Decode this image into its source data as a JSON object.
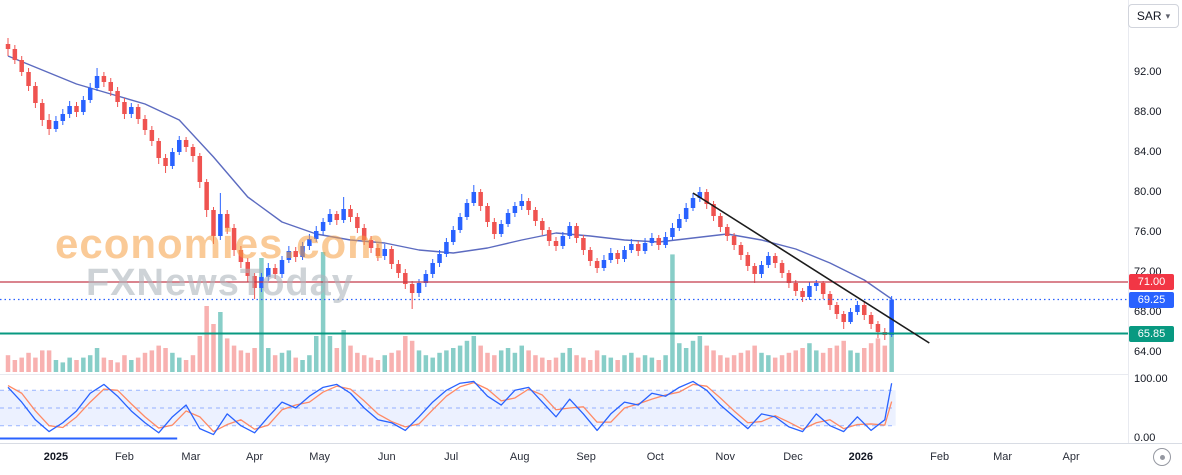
{
  "currency_selector": {
    "label": "SAR"
  },
  "icons": {
    "chevron_down": "▾",
    "target": "circle-dot"
  },
  "watermark": {
    "line1": "economies.com",
    "line2": "FXNewsToday"
  },
  "chart_data": {
    "type": "candlestick",
    "instrument_currency": "SAR",
    "y_axis": {
      "ticks": [
        92,
        88,
        84,
        80,
        76,
        72,
        68,
        64
      ]
    },
    "oscillator_axis": {
      "ticks": [
        100,
        0
      ]
    },
    "x_axis": {
      "labels": [
        {
          "t": "2025",
          "i": 7,
          "year": true
        },
        {
          "t": "Feb",
          "i": 17
        },
        {
          "t": "Mar",
          "i": 26.7
        },
        {
          "t": "Apr",
          "i": 36
        },
        {
          "t": "May",
          "i": 45.5
        },
        {
          "t": "Jun",
          "i": 55.3
        },
        {
          "t": "Jul",
          "i": 64.7
        },
        {
          "t": "Aug",
          "i": 74.7
        },
        {
          "t": "Sep",
          "i": 84.4
        },
        {
          "t": "Oct",
          "i": 94.5
        },
        {
          "t": "Nov",
          "i": 104.7
        },
        {
          "t": "Dec",
          "i": 114.6
        },
        {
          "t": "2026",
          "i": 124.5,
          "year": true
        },
        {
          "t": "Feb",
          "i": 136
        },
        {
          "t": "Mar",
          "i": 145.2
        },
        {
          "t": "Apr",
          "i": 155.2
        }
      ]
    },
    "price_lines": [
      {
        "label": "71.00",
        "value": 71.0,
        "color": "#c43a4b",
        "badge_color": "#f23645",
        "style": "solid",
        "width": 1.2
      },
      {
        "label": "69.25",
        "value": 69.25,
        "color": "#2962ff",
        "badge_color": "#2962ff",
        "style": "dotted",
        "width": 1.2
      },
      {
        "label": "65.85",
        "value": 65.85,
        "color": "#089981",
        "badge_color": "#089981",
        "style": "solid",
        "width": 2
      }
    ],
    "colors": {
      "up": "#2962ff",
      "down": "#ef5350",
      "vol_up": "rgba(38,166,154,0.55)",
      "vol_down": "rgba(239,83,80,0.45)"
    },
    "ma_line": {
      "color": "#5c6bc0",
      "indices": [
        0,
        5,
        10,
        15,
        20,
        25,
        30,
        35,
        40,
        45,
        50,
        55,
        60,
        65,
        70,
        75,
        80,
        85,
        90,
        95,
        100,
        105,
        110,
        115,
        120,
        125,
        129
      ],
      "values": [
        93.6,
        92.2,
        90.8,
        89.8,
        88.8,
        87.2,
        83.5,
        79.5,
        77.0,
        75.8,
        75.2,
        74.9,
        74.2,
        73.9,
        74.4,
        75.2,
        75.9,
        75.6,
        75.2,
        75.0,
        75.4,
        75.8,
        75.2,
        74.3,
        72.9,
        71.2,
        69.3
      ]
    },
    "trendline": {
      "from_index": 100,
      "from_price": 79.9,
      "to_index": 134.5,
      "to_price": 64.9,
      "color": "#1c1c1c",
      "width": 1.6
    },
    "candles": [
      [
        94.8,
        95.4,
        93.6,
        94.3
      ],
      [
        94.3,
        94.7,
        92.8,
        93.2
      ],
      [
        93.2,
        93.6,
        91.6,
        92.0
      ],
      [
        92.0,
        92.4,
        90.1,
        90.6
      ],
      [
        90.6,
        91.0,
        88.4,
        88.9
      ],
      [
        88.9,
        89.3,
        86.6,
        87.2
      ],
      [
        87.2,
        87.8,
        85.7,
        86.3
      ],
      [
        86.3,
        87.6,
        86.0,
        87.1
      ],
      [
        87.1,
        88.3,
        86.7,
        87.8
      ],
      [
        87.8,
        89.1,
        87.4,
        88.6
      ],
      [
        88.6,
        89.0,
        87.5,
        88.0
      ],
      [
        88.0,
        89.6,
        87.7,
        89.2
      ],
      [
        89.2,
        90.9,
        88.9,
        90.4
      ],
      [
        90.4,
        92.4,
        90.1,
        91.6
      ],
      [
        91.6,
        92.0,
        90.5,
        91.0
      ],
      [
        91.0,
        91.4,
        89.6,
        90.1
      ],
      [
        90.1,
        90.5,
        88.5,
        89.0
      ],
      [
        89.0,
        89.4,
        87.3,
        87.8
      ],
      [
        87.8,
        88.9,
        87.4,
        88.5
      ],
      [
        88.5,
        88.8,
        86.8,
        87.3
      ],
      [
        87.3,
        87.7,
        85.7,
        86.2
      ],
      [
        86.2,
        86.6,
        84.6,
        85.1
      ],
      [
        85.1,
        85.4,
        82.8,
        83.4
      ],
      [
        83.4,
        83.8,
        81.9,
        82.6
      ],
      [
        82.6,
        84.4,
        82.3,
        84.0
      ],
      [
        84.0,
        85.6,
        83.7,
        85.2
      ],
      [
        85.2,
        85.5,
        84.0,
        84.5
      ],
      [
        84.5,
        84.8,
        83.0,
        83.6
      ],
      [
        83.6,
        83.9,
        80.4,
        81.0
      ],
      [
        81.0,
        81.3,
        77.5,
        78.2
      ],
      [
        78.2,
        78.5,
        74.8,
        75.6
      ],
      [
        75.6,
        79.9,
        75.2,
        77.8
      ],
      [
        77.8,
        78.2,
        75.8,
        76.4
      ],
      [
        76.4,
        76.8,
        73.6,
        74.2
      ],
      [
        74.2,
        74.6,
        72.4,
        73.0
      ],
      [
        73.0,
        73.4,
        71.0,
        71.6
      ],
      [
        71.6,
        71.9,
        69.3,
        70.4
      ],
      [
        70.4,
        71.9,
        70.0,
        71.5
      ],
      [
        71.5,
        72.9,
        71.1,
        72.4
      ],
      [
        72.4,
        72.8,
        71.3,
        71.8
      ],
      [
        71.8,
        73.6,
        71.4,
        73.2
      ],
      [
        73.2,
        74.6,
        72.9,
        74.1
      ],
      [
        74.1,
        74.5,
        73.0,
        73.5
      ],
      [
        73.5,
        75.0,
        73.2,
        74.6
      ],
      [
        74.6,
        75.8,
        74.2,
        75.3
      ],
      [
        75.3,
        76.6,
        75.0,
        76.1
      ],
      [
        76.1,
        77.4,
        75.7,
        77.0
      ],
      [
        77.0,
        78.3,
        76.7,
        77.8
      ],
      [
        77.8,
        78.1,
        76.7,
        77.2
      ],
      [
        77.2,
        79.5,
        76.9,
        78.3
      ],
      [
        78.3,
        78.7,
        77.0,
        77.5
      ],
      [
        77.5,
        77.9,
        75.9,
        76.4
      ],
      [
        76.4,
        76.8,
        74.7,
        75.2
      ],
      [
        75.2,
        75.6,
        73.9,
        74.4
      ],
      [
        74.4,
        74.8,
        73.1,
        73.6
      ],
      [
        73.6,
        74.8,
        73.2,
        74.3
      ],
      [
        74.3,
        74.6,
        72.3,
        72.8
      ],
      [
        72.8,
        73.2,
        71.4,
        71.9
      ],
      [
        71.9,
        72.3,
        70.3,
        70.8
      ],
      [
        70.8,
        71.1,
        68.3,
        69.9
      ],
      [
        69.9,
        71.3,
        69.5,
        70.9
      ],
      [
        70.9,
        72.2,
        70.5,
        71.8
      ],
      [
        71.8,
        73.3,
        71.4,
        72.9
      ],
      [
        72.9,
        74.2,
        72.5,
        73.8
      ],
      [
        73.8,
        75.4,
        73.5,
        75.0
      ],
      [
        75.0,
        76.6,
        74.7,
        76.2
      ],
      [
        76.2,
        77.9,
        75.9,
        77.5
      ],
      [
        77.5,
        79.3,
        77.2,
        78.9
      ],
      [
        78.9,
        80.7,
        78.6,
        80.0
      ],
      [
        80.0,
        80.3,
        78.1,
        78.6
      ],
      [
        78.6,
        78.9,
        76.5,
        77.0
      ],
      [
        77.0,
        77.4,
        75.3,
        75.8
      ],
      [
        75.8,
        77.2,
        75.5,
        76.8
      ],
      [
        76.8,
        78.3,
        76.5,
        77.9
      ],
      [
        77.9,
        79.0,
        77.5,
        78.6
      ],
      [
        78.6,
        79.8,
        78.2,
        79.1
      ],
      [
        79.1,
        79.4,
        77.7,
        78.2
      ],
      [
        78.2,
        78.5,
        76.6,
        77.1
      ],
      [
        77.1,
        77.4,
        75.7,
        76.2
      ],
      [
        76.2,
        76.5,
        74.6,
        75.1
      ],
      [
        75.1,
        75.5,
        74.1,
        74.6
      ],
      [
        74.6,
        76.0,
        74.3,
        75.6
      ],
      [
        75.6,
        77.0,
        75.3,
        76.6
      ],
      [
        76.6,
        76.9,
        74.9,
        75.4
      ],
      [
        75.4,
        75.7,
        73.7,
        74.2
      ],
      [
        74.2,
        74.5,
        72.6,
        73.1
      ],
      [
        73.1,
        73.4,
        71.9,
        72.4
      ],
      [
        72.4,
        73.7,
        72.1,
        73.2
      ],
      [
        73.2,
        74.4,
        72.9,
        73.9
      ],
      [
        73.9,
        74.2,
        72.8,
        73.3
      ],
      [
        73.3,
        74.6,
        73.0,
        74.2
      ],
      [
        74.2,
        75.3,
        73.9,
        74.8
      ],
      [
        74.8,
        75.1,
        73.6,
        74.1
      ],
      [
        74.1,
        75.4,
        73.8,
        74.9
      ],
      [
        74.9,
        75.9,
        74.6,
        75.4
      ],
      [
        75.4,
        75.7,
        74.2,
        74.7
      ],
      [
        74.7,
        76.0,
        74.4,
        75.5
      ],
      [
        75.5,
        76.9,
        75.2,
        76.4
      ],
      [
        76.4,
        77.8,
        76.1,
        77.3
      ],
      [
        77.3,
        78.9,
        77.0,
        78.4
      ],
      [
        78.4,
        79.9,
        78.1,
        79.4
      ],
      [
        79.4,
        80.5,
        79.0,
        80.0
      ],
      [
        80.0,
        80.3,
        78.3,
        78.8
      ],
      [
        78.8,
        79.1,
        77.1,
        77.6
      ],
      [
        77.6,
        77.9,
        76.0,
        76.5
      ],
      [
        76.5,
        76.8,
        75.1,
        75.6
      ],
      [
        75.6,
        75.9,
        74.2,
        74.7
      ],
      [
        74.7,
        75.0,
        73.2,
        73.7
      ],
      [
        73.7,
        74.0,
        72.1,
        72.6
      ],
      [
        72.6,
        72.9,
        70.9,
        71.8
      ],
      [
        71.8,
        73.1,
        71.4,
        72.7
      ],
      [
        72.7,
        74.0,
        72.4,
        73.6
      ],
      [
        73.6,
        73.9,
        72.4,
        72.9
      ],
      [
        72.9,
        73.2,
        71.4,
        71.9
      ],
      [
        71.9,
        72.2,
        70.4,
        70.9
      ],
      [
        70.9,
        71.2,
        69.6,
        70.1
      ],
      [
        70.1,
        70.4,
        69.0,
        69.5
      ],
      [
        69.5,
        71.0,
        69.2,
        70.6
      ],
      [
        70.6,
        71.2,
        70.1,
        70.9
      ],
      [
        70.9,
        71.1,
        69.3,
        69.8
      ],
      [
        69.8,
        70.1,
        68.2,
        68.7
      ],
      [
        68.7,
        69.0,
        67.3,
        67.8
      ],
      [
        67.8,
        68.1,
        66.3,
        67.0
      ],
      [
        67.0,
        68.4,
        66.8,
        68.0
      ],
      [
        68.0,
        69.1,
        67.7,
        68.7
      ],
      [
        68.7,
        69.0,
        67.2,
        67.7
      ],
      [
        67.7,
        68.0,
        66.3,
        66.8
      ],
      [
        66.8,
        67.1,
        65.4,
        66.0
      ],
      [
        66.0,
        66.4,
        65.2,
        65.7
      ],
      [
        65.7,
        69.6,
        65.5,
        69.25
      ]
    ],
    "volume": [
      14,
      10,
      12,
      16,
      12,
      18,
      18,
      10,
      8,
      12,
      10,
      12,
      14,
      20,
      12,
      10,
      8,
      14,
      10,
      12,
      16,
      18,
      22,
      20,
      16,
      12,
      10,
      14,
      30,
      55,
      40,
      50,
      28,
      22,
      18,
      16,
      20,
      95,
      20,
      14,
      16,
      18,
      12,
      10,
      14,
      30,
      100,
      30,
      20,
      35,
      22,
      16,
      14,
      12,
      10,
      14,
      16,
      18,
      30,
      26,
      18,
      14,
      12,
      16,
      18,
      20,
      22,
      26,
      30,
      22,
      16,
      14,
      18,
      20,
      16,
      22,
      18,
      14,
      12,
      10,
      12,
      16,
      20,
      14,
      12,
      10,
      18,
      14,
      12,
      10,
      14,
      16,
      12,
      14,
      12,
      10,
      14,
      98,
      24,
      20,
      26,
      30,
      22,
      18,
      14,
      12,
      14,
      16,
      18,
      22,
      16,
      14,
      12,
      14,
      16,
      18,
      20,
      24,
      18,
      16,
      20,
      22,
      26,
      18,
      16,
      20,
      24,
      28,
      22,
      45
    ],
    "oscillator": {
      "range": [
        0,
        100
      ],
      "bands": [
        80,
        50,
        20
      ],
      "band_fill": "rgba(41,98,255,0.09)",
      "band_line_color": "rgba(41,98,255,0.45)",
      "k_color": "#2962ff",
      "d_color": "#ff8a65",
      "zero_segment_end_index": 24.7,
      "zero_segment_color": "#2962ff",
      "k": [
        85,
        60,
        30,
        10,
        25,
        45,
        75,
        90,
        70,
        45,
        25,
        8,
        35,
        55,
        15,
        5,
        40,
        20,
        8,
        35,
        60,
        50,
        70,
        85,
        90,
        75,
        50,
        30,
        25,
        12,
        35,
        60,
        80,
        92,
        95,
        70,
        55,
        80,
        85,
        60,
        35,
        65,
        40,
        12,
        40,
        60,
        55,
        75,
        70,
        85,
        95,
        80,
        55,
        35,
        15,
        40,
        35,
        18,
        10,
        40,
        20,
        10,
        35,
        12,
        30,
        92
      ],
      "d": [
        88,
        75,
        45,
        20,
        17,
        35,
        60,
        82,
        80,
        57,
        35,
        16,
        21,
        45,
        35,
        10,
        22,
        30,
        14,
        21,
        47,
        55,
        60,
        77,
        87,
        82,
        62,
        40,
        27,
        18,
        23,
        47,
        70,
        86,
        93,
        82,
        62,
        67,
        82,
        72,
        47,
        50,
        52,
        26,
        26,
        50,
        57,
        65,
        72,
        77,
        90,
        87,
        67,
        45,
        25,
        27,
        37,
        26,
        14,
        25,
        30,
        15,
        22,
        23,
        21,
        61
      ]
    }
  }
}
